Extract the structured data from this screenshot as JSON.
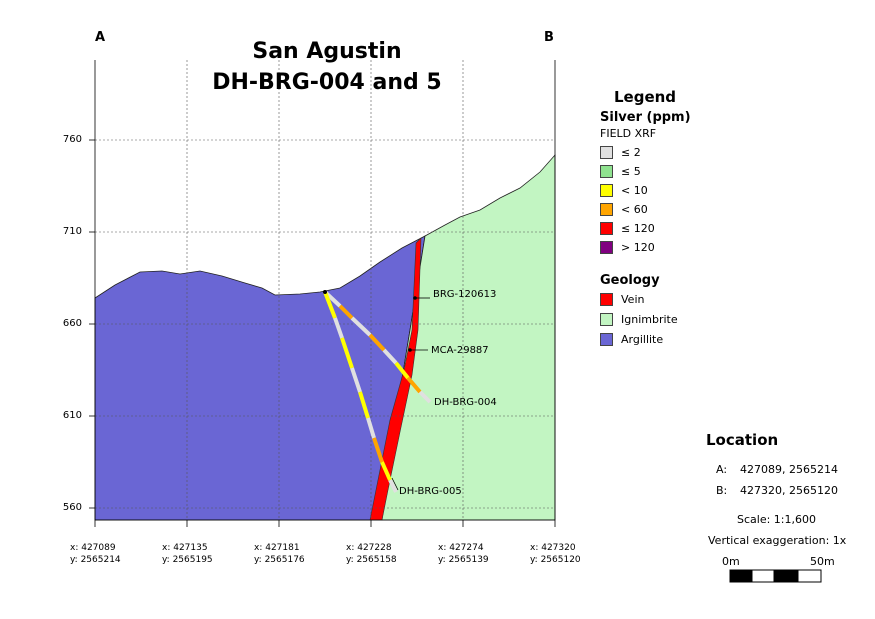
{
  "section": {
    "corner_left": "A",
    "corner_right": "B",
    "title_line1": "San Agustin",
    "title_line2": "DH-BRG-004 and 5",
    "y_ticks": [
      "760",
      "710",
      "660",
      "610",
      "560"
    ],
    "x_ticks": [
      {
        "x": "x: 427089",
        "y": "y: 2565214"
      },
      {
        "x": "x: 427135",
        "y": "y: 2565195"
      },
      {
        "x": "x: 427181",
        "y": "y: 2565176"
      },
      {
        "x": "x: 427228",
        "y": "y: 2565158"
      },
      {
        "x": "x: 427274",
        "y": "y: 2565139"
      },
      {
        "x": "x: 427320",
        "y": "y: 2565120"
      }
    ],
    "annotations": {
      "sample1": "BRG-120613",
      "sample2": "MCA-29887",
      "hole1": "DH-BRG-004",
      "hole2": "DH-BRG-005"
    }
  },
  "legend": {
    "title": "Legend",
    "silver_title": "Silver (ppm)",
    "silver_subtitle": "FIELD XRF",
    "silver_items": [
      {
        "label": "≤ 2",
        "color": "#e0e0e0"
      },
      {
        "label": "≤ 5",
        "color": "#8fe28f"
      },
      {
        "label": "< 10",
        "color": "#ffff00"
      },
      {
        "label": "< 60",
        "color": "#ffa500"
      },
      {
        "label": "≤ 120",
        "color": "#ff0000"
      },
      {
        "label": "> 120",
        "color": "#800080"
      }
    ],
    "geology_title": "Geology",
    "geology_items": [
      {
        "label": "Vein",
        "color": "#ff0000"
      },
      {
        "label": "Ignimbrite",
        "color": "#c2f5c2"
      },
      {
        "label": "Argillite",
        "color": "#6a66d4"
      }
    ]
  },
  "location": {
    "title": "Location",
    "a_label": "A:",
    "a_coords": "427089, 2565214",
    "b_label": "B:",
    "b_coords": "427320, 2565120",
    "scale": "Scale: 1:1,600",
    "exaggeration": "Vertical exaggeration: 1x",
    "bar_start": "0m",
    "bar_end": "50m"
  },
  "colors": {
    "argillite": "#6a66d4",
    "ignimbrite": "#c2f5c2",
    "vein": "#ff0000"
  }
}
